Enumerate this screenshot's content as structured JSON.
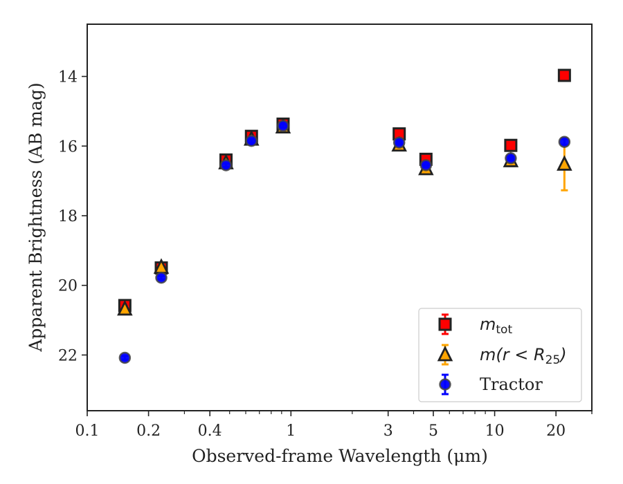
{
  "chart_data": {
    "type": "scatter",
    "xlabel": "Observed-frame Wavelength (μm)",
    "ylabel": "Apparent Brightness (AB mag)",
    "xscale": "log",
    "xlim": [
      0.1,
      30
    ],
    "ylim": [
      23.6,
      12.5
    ],
    "y_inverted": true,
    "x_ticks": [
      0.1,
      0.2,
      0.4,
      1,
      3,
      5,
      10,
      20
    ],
    "x_tick_labels": [
      "0.1",
      "0.2",
      "0.4",
      "1",
      "3",
      "5",
      "10",
      "20"
    ],
    "y_ticks": [
      14,
      16,
      18,
      20,
      22
    ],
    "y_tick_labels": [
      "14",
      "16",
      "18",
      "20",
      "22"
    ],
    "legend_position": "lower right",
    "grid": false,
    "series": [
      {
        "name": "m_tot",
        "legend_main": "m",
        "legend_sub": "tot",
        "marker": "square",
        "color": "#ff0000",
        "edge_color": "#222222",
        "errorbar_color": "#ff0000",
        "points": [
          {
            "x": 0.153,
            "y": 20.58,
            "err": 0.08
          },
          {
            "x": 0.231,
            "y": 19.5,
            "err": 0.05
          },
          {
            "x": 0.48,
            "y": 16.4,
            "err": 0.08
          },
          {
            "x": 0.64,
            "y": 15.72,
            "err": 0.08
          },
          {
            "x": 0.915,
            "y": 15.37,
            "err": 0.05
          },
          {
            "x": 3.4,
            "y": 15.65,
            "err": 0.05
          },
          {
            "x": 4.6,
            "y": 16.38,
            "err": 0.1
          },
          {
            "x": 12.0,
            "y": 15.98,
            "err": 0.05
          },
          {
            "x": 22.0,
            "y": 13.97,
            "err": 0.05
          }
        ]
      },
      {
        "name": "m(r < R_25)",
        "legend_main": "m(r < R",
        "legend_sub": "25",
        "legend_tail": ")",
        "marker": "triangle",
        "color": "#ffa500",
        "edge_color": "#222222",
        "errorbar_color": "#ffa500",
        "points": [
          {
            "x": 0.153,
            "y": 20.68,
            "err": 0.05
          },
          {
            "x": 0.231,
            "y": 19.48,
            "err": 0.05
          },
          {
            "x": 0.48,
            "y": 16.48,
            "err": 0.05
          },
          {
            "x": 0.64,
            "y": 15.8,
            "err": 0.05
          },
          {
            "x": 0.915,
            "y": 15.45,
            "err": 0.05
          },
          {
            "x": 3.4,
            "y": 15.97,
            "err": 0.05
          },
          {
            "x": 4.6,
            "y": 16.65,
            "err": 0.05
          },
          {
            "x": 12.0,
            "y": 16.42,
            "err": 0.05
          },
          {
            "x": 22.0,
            "y": 16.52,
            "err": 0.75
          }
        ]
      },
      {
        "name": "Tractor",
        "legend_main": "Tractor",
        "marker": "circle",
        "color": "#0000ff",
        "edge_color": "#444444",
        "errorbar_color": "#0000ff",
        "points": [
          {
            "x": 0.153,
            "y": 22.08,
            "err": 0.05
          },
          {
            "x": 0.231,
            "y": 19.78,
            "err": 0.05
          },
          {
            "x": 0.48,
            "y": 16.55,
            "err": 0.05
          },
          {
            "x": 0.64,
            "y": 15.85,
            "err": 0.05
          },
          {
            "x": 0.915,
            "y": 15.42,
            "err": 0.05
          },
          {
            "x": 3.4,
            "y": 15.9,
            "err": 0.05
          },
          {
            "x": 4.6,
            "y": 16.55,
            "err": 0.05
          },
          {
            "x": 12.0,
            "y": 16.35,
            "err": 0.05
          },
          {
            "x": 22.0,
            "y": 15.88,
            "err": 0.08
          }
        ]
      }
    ]
  }
}
